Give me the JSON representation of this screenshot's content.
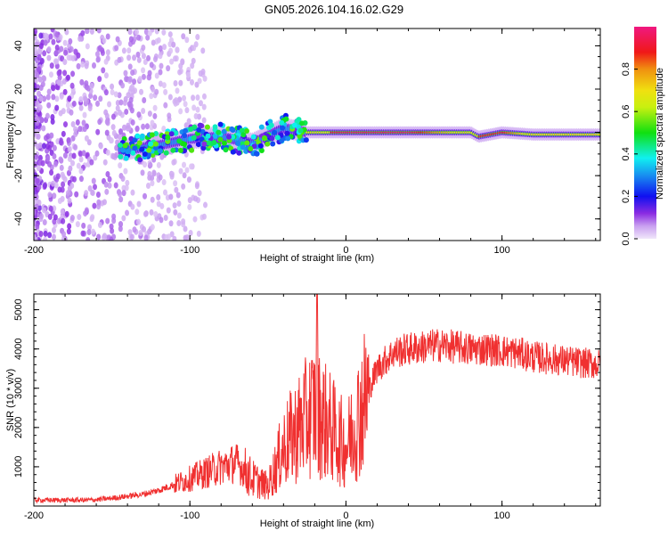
{
  "title": "GN05.2026.104.16.02.G29",
  "colors": {
    "snr_line": "#f03030",
    "frame": "#000000"
  },
  "chart_data": [
    {
      "type": "heatmap",
      "title": "GN05.2026.104.16.02.G29",
      "xlabel": "Height of straight line (km)",
      "ylabel": "Frequency (Hz)",
      "xlim": [
        -200,
        163
      ],
      "ylim": [
        -50,
        48
      ],
      "xticks": [
        "-200",
        "-100",
        "0",
        "100"
      ],
      "xtick_values": [
        -200,
        -100,
        0,
        100
      ],
      "yticks": [
        "-40",
        "-20",
        "0",
        "20",
        "40"
      ],
      "ytick_values": [
        -40,
        -20,
        0,
        20,
        40
      ],
      "colorbar": {
        "label": "Normalized spectral amplitude",
        "range": [
          0,
          1
        ],
        "ticks": [
          "0.0",
          "0.2",
          "0.4",
          "0.6",
          "0.8"
        ],
        "tick_values": [
          0,
          0.2,
          0.4,
          0.6,
          0.8
        ]
      },
      "ridge": {
        "height_km": [
          -140,
          -120,
          -100,
          -80,
          -60,
          -40,
          -25,
          -10,
          0,
          40,
          80,
          85,
          100,
          120,
          163
        ],
        "center_freq_hz": [
          -8,
          -6,
          -3,
          -2,
          -5,
          2,
          0,
          0,
          0,
          0,
          0,
          -2,
          0,
          -1,
          -1
        ],
        "peak_amplitude": [
          0.35,
          0.4,
          0.45,
          0.45,
          0.4,
          0.5,
          0.9,
          0.9,
          0.95,
          0.95,
          0.6,
          0.9,
          0.9,
          0.6,
          0.5
        ]
      },
      "noise_region_km": [
        -200,
        -100
      ]
    },
    {
      "type": "line",
      "xlabel": "Height of straight line (km)",
      "ylabel": "SNR (10 * v/v)",
      "xlim": [
        -200,
        163
      ],
      "ylim": [
        0,
        5400
      ],
      "xticks": [
        "-200",
        "-100",
        "0",
        "100"
      ],
      "xtick_values": [
        -200,
        -100,
        0,
        100
      ],
      "yticks": [
        "1000",
        "2000",
        "3000",
        "4000",
        "5000"
      ],
      "ytick_values": [
        1000,
        2000,
        3000,
        4000,
        5000
      ],
      "series": [
        {
          "name": "SNR",
          "x": [
            -200,
            -190,
            -180,
            -170,
            -160,
            -150,
            -140,
            -130,
            -120,
            -110,
            -100,
            -90,
            -80,
            -70,
            -60,
            -50,
            -40,
            -30,
            -20,
            -10,
            0,
            10,
            20,
            30,
            40,
            50,
            60,
            70,
            80,
            90,
            100,
            110,
            120,
            130,
            140,
            150,
            163
          ],
          "y": [
            150,
            150,
            150,
            150,
            160,
            200,
            250,
            300,
            400,
            550,
            700,
            850,
            1000,
            1100,
            700,
            500,
            1500,
            2000,
            2500,
            2000,
            1500,
            2500,
            3500,
            3900,
            4000,
            4050,
            4100,
            4050,
            4000,
            4000,
            3950,
            3900,
            3800,
            3750,
            3700,
            3650,
            3600
          ]
        }
      ]
    }
  ]
}
